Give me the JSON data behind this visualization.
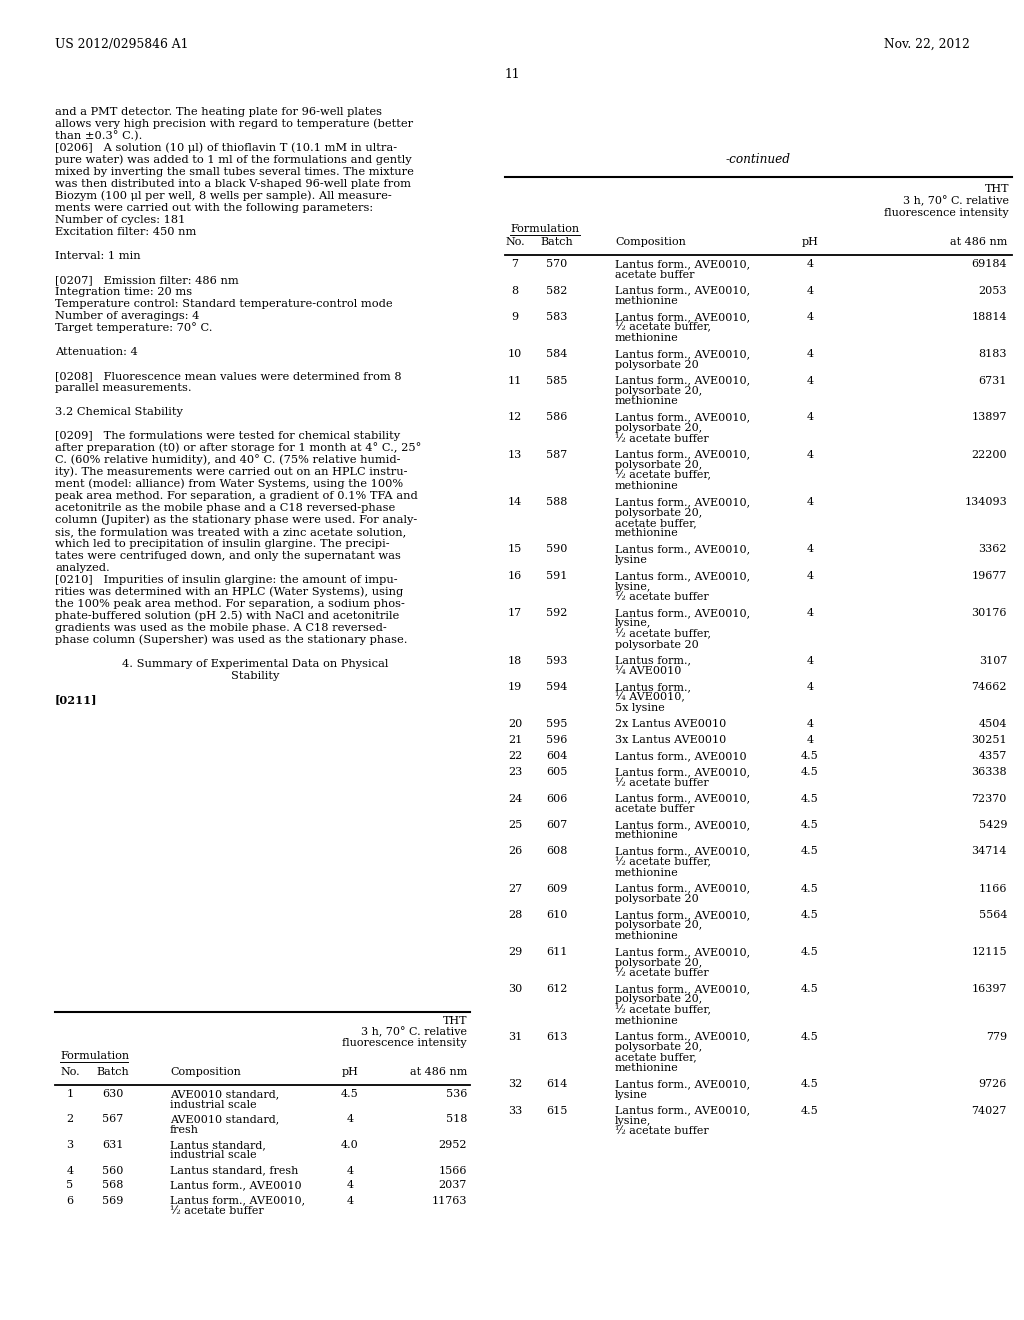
{
  "page_header_left": "US 2012/0295846 A1",
  "page_header_right": "Nov. 22, 2012",
  "page_number": "11",
  "left_text_blocks": [
    {
      "text": "and a PMT detector. The heating plate for 96-well plates",
      "indent": 0,
      "bold": false
    },
    {
      "text": "allows very high precision with regard to temperature (better",
      "indent": 0,
      "bold": false
    },
    {
      "text": "than ±0.3° C.).",
      "indent": 0,
      "bold": false
    },
    {
      "text": "[0206]   A solution (10 μl) of thioflavin T (10.1 mM in ultra-",
      "indent": 0,
      "bold": false
    },
    {
      "text": "pure water) was added to 1 ml of the formulations and gently",
      "indent": 0,
      "bold": false
    },
    {
      "text": "mixed by inverting the small tubes several times. The mixture",
      "indent": 0,
      "bold": false
    },
    {
      "text": "was then distributed into a black V-shaped 96-well plate from",
      "indent": 0,
      "bold": false
    },
    {
      "text": "Biozym (100 μl per well, 8 wells per sample). All measure-",
      "indent": 0,
      "bold": false
    },
    {
      "text": "ments were carried out with the following parameters:",
      "indent": 0,
      "bold": false
    },
    {
      "text": "Number of cycles: 181",
      "indent": 0,
      "bold": false
    },
    {
      "text": "Excitation filter: 450 nm",
      "indent": 0,
      "bold": false
    },
    {
      "text": "",
      "indent": 0,
      "bold": false
    },
    {
      "text": "Interval: 1 min",
      "indent": 0,
      "bold": false
    },
    {
      "text": "",
      "indent": 0,
      "bold": false
    },
    {
      "text": "[0207]   Emission filter: 486 nm",
      "indent": 0,
      "bold": false
    },
    {
      "text": "Integration time: 20 ms",
      "indent": 0,
      "bold": false
    },
    {
      "text": "Temperature control: Standard temperature-control mode",
      "indent": 0,
      "bold": false
    },
    {
      "text": "Number of averagings: 4",
      "indent": 0,
      "bold": false
    },
    {
      "text": "Target temperature: 70° C.",
      "indent": 0,
      "bold": false
    },
    {
      "text": "",
      "indent": 0,
      "bold": false
    },
    {
      "text": "Attenuation: 4",
      "indent": 0,
      "bold": false
    },
    {
      "text": "",
      "indent": 0,
      "bold": false
    },
    {
      "text": "[0208]   Fluorescence mean values were determined from 8",
      "indent": 0,
      "bold": false
    },
    {
      "text": "parallel measurements.",
      "indent": 0,
      "bold": false
    },
    {
      "text": "",
      "indent": 0,
      "bold": false
    },
    {
      "text": "3.2 Chemical Stability",
      "indent": 0,
      "bold": false
    },
    {
      "text": "",
      "indent": 0,
      "bold": false
    },
    {
      "text": "[0209]   The formulations were tested for chemical stability",
      "indent": 0,
      "bold": false
    },
    {
      "text": "after preparation (t0) or after storage for 1 month at 4° C., 25°",
      "indent": 0,
      "bold": false
    },
    {
      "text": "C. (60% relative humidity), and 40° C. (75% relative humid-",
      "indent": 0,
      "bold": false
    },
    {
      "text": "ity). The measurements were carried out on an HPLC instru-",
      "indent": 0,
      "bold": false
    },
    {
      "text": "ment (model: alliance) from Water Systems, using the 100%",
      "indent": 0,
      "bold": false
    },
    {
      "text": "peak area method. For separation, a gradient of 0.1% TFA and",
      "indent": 0,
      "bold": false
    },
    {
      "text": "acetonitrile as the mobile phase and a C18 reversed-phase",
      "indent": 0,
      "bold": false
    },
    {
      "text": "column (Jupiter) as the stationary phase were used. For analy-",
      "indent": 0,
      "bold": false
    },
    {
      "text": "sis, the formulation was treated with a zinc acetate solution,",
      "indent": 0,
      "bold": false
    },
    {
      "text": "which led to precipitation of insulin glargine. The precipi-",
      "indent": 0,
      "bold": false
    },
    {
      "text": "tates were centrifuged down, and only the supernatant was",
      "indent": 0,
      "bold": false
    },
    {
      "text": "analyzed.",
      "indent": 0,
      "bold": false
    },
    {
      "text": "[0210]   Impurities of insulin glargine: the amount of impu-",
      "indent": 0,
      "bold": false
    },
    {
      "text": "rities was determined with an HPLC (Water Systems), using",
      "indent": 0,
      "bold": false
    },
    {
      "text": "the 100% peak area method. For separation, a sodium phos-",
      "indent": 0,
      "bold": false
    },
    {
      "text": "phate-buffered solution (pH 2.5) with NaCl and acetonitrile",
      "indent": 0,
      "bold": false
    },
    {
      "text": "gradients was used as the mobile phase. A C18 reversed-",
      "indent": 0,
      "bold": false
    },
    {
      "text": "phase column (Supersher) was used as the stationary phase.",
      "indent": 0,
      "bold": false
    },
    {
      "text": "",
      "indent": 0,
      "bold": false
    },
    {
      "text": "4. Summary of Experimental Data on Physical",
      "indent": 0,
      "bold": false,
      "center": true
    },
    {
      "text": "Stability",
      "indent": 0,
      "bold": false,
      "center": true
    },
    {
      "text": "",
      "indent": 0,
      "bold": false
    },
    {
      "text": "[0211]",
      "indent": 0,
      "bold": true
    }
  ],
  "bottom_table_rows": [
    [
      "1",
      "630",
      "AVE0010 standard,",
      "industrial scale",
      "",
      "4.5",
      "536"
    ],
    [
      "2",
      "567",
      "AVE0010 standard,",
      "fresh",
      "",
      "4",
      "518"
    ],
    [
      "3",
      "631",
      "Lantus standard,",
      "industrial scale",
      "",
      "4.0",
      "2952"
    ],
    [
      "4",
      "560",
      "Lantus standard, fresh",
      "",
      "",
      "4",
      "1566"
    ],
    [
      "5",
      "568",
      "Lantus form., AVE0010",
      "",
      "",
      "4",
      "2037"
    ],
    [
      "6",
      "569",
      "Lantus form., AVE0010,",
      "½ acetate buffer",
      "",
      "4",
      "11763"
    ]
  ],
  "right_table_rows": [
    [
      "7",
      "570",
      "Lantus form., AVE0010,",
      "acetate buffer",
      "",
      "",
      "4",
      "69184"
    ],
    [
      "8",
      "582",
      "Lantus form., AVE0010,",
      "methionine",
      "",
      "",
      "4",
      "2053"
    ],
    [
      "9",
      "583",
      "Lantus form., AVE0010,",
      "½ acetate buffer,",
      "methionine",
      "",
      "4",
      "18814"
    ],
    [
      "10",
      "584",
      "Lantus form., AVE0010,",
      "polysorbate 20",
      "",
      "",
      "4",
      "8183"
    ],
    [
      "11",
      "585",
      "Lantus form., AVE0010,",
      "polysorbate 20,",
      "methionine",
      "",
      "4",
      "6731"
    ],
    [
      "12",
      "586",
      "Lantus form., AVE0010,",
      "polysorbate 20,",
      "½ acetate buffer",
      "",
      "4",
      "13897"
    ],
    [
      "13",
      "587",
      "Lantus form., AVE0010,",
      "polysorbate 20,",
      "½ acetate buffer,",
      "methionine",
      "4",
      "22200"
    ],
    [
      "14",
      "588",
      "Lantus form., AVE0010,",
      "polysorbate 20,",
      "acetate buffer,",
      "methionine",
      "4",
      "134093"
    ],
    [
      "15",
      "590",
      "Lantus form., AVE0010,",
      "lysine",
      "",
      "",
      "4",
      "3362"
    ],
    [
      "16",
      "591",
      "Lantus form., AVE0010,",
      "lysine,",
      "½ acetate buffer",
      "",
      "4",
      "19677"
    ],
    [
      "17",
      "592",
      "Lantus form., AVE0010,",
      "lysine,",
      "½ acetate buffer,",
      "polysorbate 20",
      "4",
      "30176"
    ],
    [
      "18",
      "593",
      "Lantus form.,",
      "¼ AVE0010",
      "",
      "",
      "4",
      "3107"
    ],
    [
      "19",
      "594",
      "Lantus form.,",
      "¼ AVE0010,",
      "5x lysine",
      "",
      "4",
      "74662"
    ],
    [
      "20",
      "595",
      "2x Lantus AVE0010",
      "",
      "",
      "",
      "4",
      "4504"
    ],
    [
      "21",
      "596",
      "3x Lantus AVE0010",
      "",
      "",
      "",
      "4",
      "30251"
    ],
    [
      "22",
      "604",
      "Lantus form., AVE0010",
      "",
      "",
      "",
      "4.5",
      "4357"
    ],
    [
      "23",
      "605",
      "Lantus form., AVE0010,",
      "½ acetate buffer",
      "",
      "",
      "4.5",
      "36338"
    ],
    [
      "24",
      "606",
      "Lantus form., AVE0010,",
      "acetate buffer",
      "",
      "",
      "4.5",
      "72370"
    ],
    [
      "25",
      "607",
      "Lantus form., AVE0010,",
      "methionine",
      "",
      "",
      "4.5",
      "5429"
    ],
    [
      "26",
      "608",
      "Lantus form., AVE0010,",
      "½ acetate buffer,",
      "methionine",
      "",
      "4.5",
      "34714"
    ],
    [
      "27",
      "609",
      "Lantus form., AVE0010,",
      "polysorbate 20",
      "",
      "",
      "4.5",
      "1166"
    ],
    [
      "28",
      "610",
      "Lantus form., AVE0010,",
      "polysorbate 20,",
      "methionine",
      "",
      "4.5",
      "5564"
    ],
    [
      "29",
      "611",
      "Lantus form., AVE0010,",
      "polysorbate 20,",
      "½ acetate buffer",
      "",
      "4.5",
      "12115"
    ],
    [
      "30",
      "612",
      "Lantus form., AVE0010,",
      "polysorbate 20,",
      "½ acetate buffer,",
      "methionine",
      "4.5",
      "16397"
    ],
    [
      "31",
      "613",
      "Lantus form., AVE0010,",
      "polysorbate 20,",
      "acetate buffer,",
      "methionine",
      "4.5",
      "779"
    ],
    [
      "32",
      "614",
      "Lantus form., AVE0010,",
      "lysine",
      "",
      "",
      "4.5",
      "9726"
    ],
    [
      "33",
      "615",
      "Lantus form., AVE0010,",
      "lysine,",
      "½ acetate buffer",
      "",
      "4.5",
      "74027"
    ]
  ],
  "background_color": "#ffffff",
  "text_color": "#000000"
}
